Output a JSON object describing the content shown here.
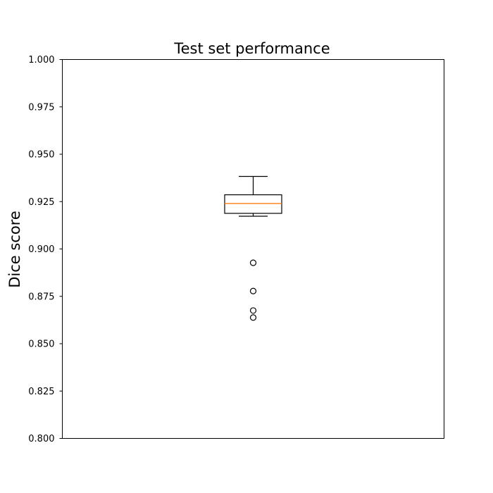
{
  "chart_data": {
    "type": "box",
    "title": "Test set performance",
    "xlabel": "",
    "ylabel": "Dice score",
    "ylim": [
      0.8,
      1.0
    ],
    "yticks": [
      0.8,
      0.825,
      0.85,
      0.875,
      0.9,
      0.925,
      0.95,
      0.975,
      1.0
    ],
    "ytick_labels": [
      "0.800",
      "0.825",
      "0.850",
      "0.875",
      "0.900",
      "0.925",
      "0.950",
      "0.975",
      "1.000"
    ],
    "grid": false,
    "box": {
      "whisker_low": 0.9173,
      "q1": 0.9188,
      "median": 0.924,
      "q3": 0.9286,
      "whisker_high": 0.9383,
      "outliers": [
        0.8927,
        0.8778,
        0.8675,
        0.8638
      ]
    },
    "colors": {
      "median": "#ff7f0e",
      "box": "#000000",
      "axes": "#000000"
    }
  }
}
